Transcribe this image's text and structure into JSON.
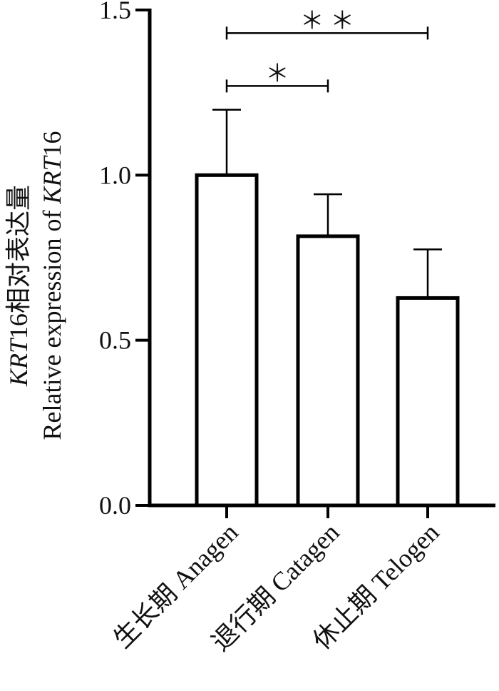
{
  "chart_data": {
    "type": "bar",
    "categories": [
      "生长期  Anagen",
      "退行期  Catagen",
      "休止期  Telogen"
    ],
    "values": [
      1.0,
      0.815,
      0.628
    ],
    "error_upper": [
      1.198,
      0.942,
      0.775
    ],
    "ylim": [
      0,
      1.5
    ],
    "yticks": [
      "0.0",
      "0.5",
      "1.0",
      "1.5"
    ],
    "ylabel": {
      "line1_italic": "KRT",
      "line1_rest": "16相对表达量",
      "line2_plain": "Relative expression of ",
      "line2_italic": "KRT",
      "line2_tail": "16"
    },
    "significance": [
      {
        "from": 0,
        "to": 2,
        "label": "＊  ＊",
        "y": 1.43
      },
      {
        "from": 0,
        "to": 1,
        "label": "＊",
        "y": 1.27
      }
    ],
    "colors": {
      "bar_fill": "#ffffff",
      "bar_stroke": "#000000"
    }
  }
}
